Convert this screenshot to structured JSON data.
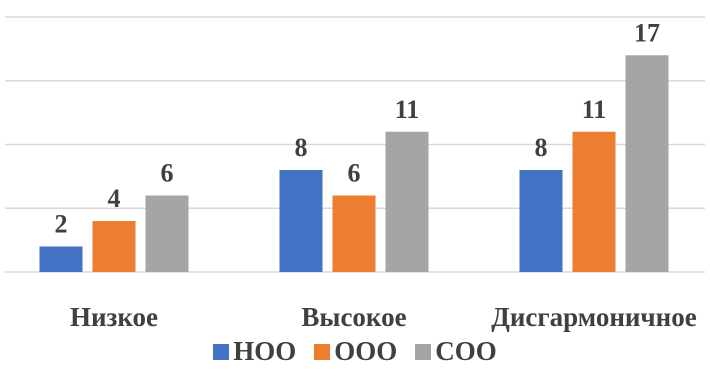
{
  "chart_data": {
    "type": "bar",
    "categories": [
      "Низкое",
      "Высокое",
      "Дисгармоничное"
    ],
    "series": [
      {
        "name": "НОО",
        "values": [
          2,
          8,
          8
        ],
        "color": "#4472C4"
      },
      {
        "name": "ООО",
        "values": [
          4,
          6,
          11
        ],
        "color": "#ED7D31"
      },
      {
        "name": "СОО",
        "values": [
          6,
          11,
          17
        ],
        "color": "#A5A5A5"
      }
    ],
    "ylim": [
      0,
      20
    ],
    "grid": true,
    "legend_position": "bottom",
    "data_labels": true
  }
}
